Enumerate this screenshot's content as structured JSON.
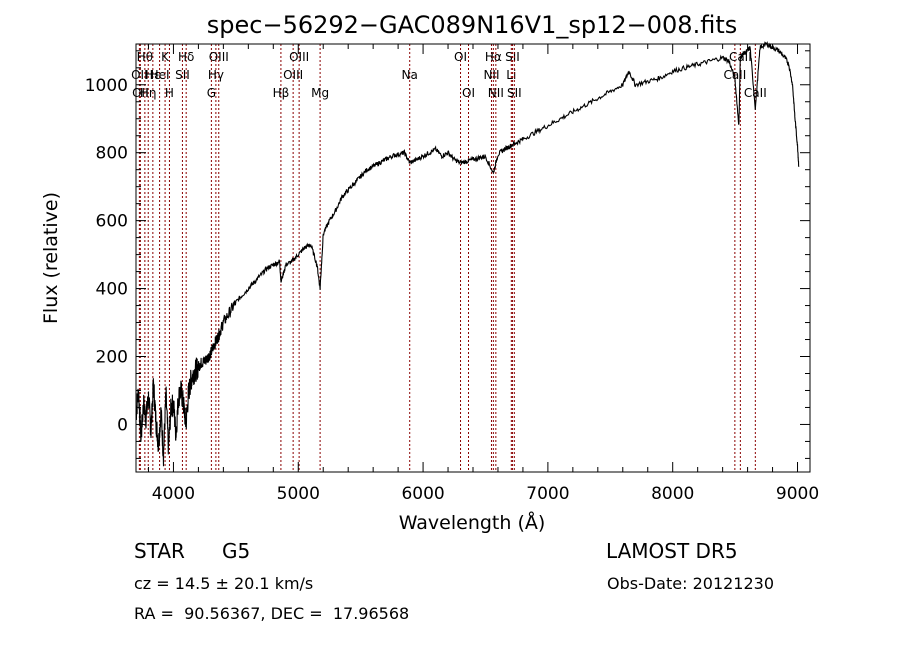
{
  "chart_data": {
    "type": "line",
    "title": "spec−56292−GAC089N16V1_sp12−008.fits",
    "xlabel": "Wavelength (Å)",
    "ylabel": "Flux (relative)",
    "xlim": [
      3700,
      9100
    ],
    "ylim": [
      -140,
      1120
    ],
    "xticks": [
      4000,
      5000,
      6000,
      7000,
      8000,
      9000
    ],
    "yticks": [
      0,
      200,
      400,
      600,
      800,
      1000
    ],
    "grid": false,
    "legend": "none",
    "line_color": "#000000",
    "marker_color": "#8b0000",
    "series": [
      {
        "x": [
          3700,
          3720,
          3740,
          3760,
          3780,
          3800,
          3820,
          3840,
          3860,
          3880,
          3900,
          3920,
          3940,
          3960,
          3980,
          4000,
          4020,
          4040,
          4060,
          4080,
          4100,
          4120,
          4140,
          4160,
          4180,
          4200,
          4220,
          4240,
          4260,
          4280,
          4300,
          4320,
          4340,
          4360,
          4380,
          4400,
          4450,
          4500,
          4550,
          4600,
          4650,
          4700,
          4750,
          4800,
          4850,
          4862,
          4900,
          4950,
          5000,
          5050,
          5100,
          5150,
          5175,
          5200,
          5250,
          5300,
          5350,
          5400,
          5450,
          5500,
          5550,
          5600,
          5650,
          5700,
          5750,
          5800,
          5850,
          5893,
          5950,
          6000,
          6050,
          6100,
          6150,
          6200,
          6250,
          6300,
          6350,
          6400,
          6450,
          6500,
          6563,
          6600,
          6650,
          6700,
          6750,
          6800,
          6900,
          7000,
          7100,
          7200,
          7300,
          7400,
          7500,
          7600,
          7650,
          7700,
          7800,
          7900,
          8000,
          8100,
          8200,
          8300,
          8400,
          8450,
          8498,
          8530,
          8542,
          8560,
          8600,
          8620,
          8662,
          8700,
          8750,
          8800,
          8850,
          8900,
          8930,
          8960,
          8980,
          9000,
          9010
        ],
        "y": [
          30,
          100,
          -40,
          60,
          20,
          80,
          -20,
          120,
          10,
          -60,
          40,
          -90,
          90,
          -70,
          50,
          60,
          -30,
          80,
          100,
          60,
          0,
          90,
          130,
          150,
          160,
          170,
          180,
          185,
          190,
          200,
          210,
          230,
          245,
          260,
          280,
          300,
          330,
          360,
          380,
          400,
          420,
          440,
          460,
          470,
          480,
          420,
          470,
          480,
          500,
          520,
          530,
          470,
          400,
          560,
          600,
          630,
          670,
          690,
          710,
          730,
          750,
          760,
          770,
          780,
          790,
          795,
          800,
          770,
          780,
          790,
          800,
          810,
          790,
          800,
          780,
          770,
          775,
          780,
          785,
          790,
          740,
          795,
          810,
          820,
          830,
          840,
          860,
          880,
          900,
          920,
          940,
          960,
          980,
          1000,
          1040,
          1000,
          1010,
          1020,
          1040,
          1050,
          1060,
          1070,
          1080,
          1070,
          1020,
          880,
          1080,
          1090,
          1100,
          1110,
          930,
          1110,
          1120,
          1110,
          1100,
          1080,
          1060,
          1000,
          900,
          820,
          760
        ]
      }
    ],
    "line_markers": [
      {
        "x": 3727,
        "label": "OII",
        "row": 1
      },
      {
        "x": 3735,
        "label": "OII",
        "row": 2
      },
      {
        "x": 3771,
        "label": "Hθ",
        "row": 0
      },
      {
        "x": 3798,
        "label": "Hη",
        "row": 2
      },
      {
        "x": 3835,
        "label": "Hε",
        "row": 1
      },
      {
        "x": 3889,
        "label": "HeI",
        "row": 1
      },
      {
        "x": 3933,
        "label": "K",
        "row": 0
      },
      {
        "x": 3968,
        "label": "H",
        "row": 2
      },
      {
        "x": 4072,
        "label": "SII",
        "row": 1
      },
      {
        "x": 4102,
        "label": "Hδ",
        "row": 0
      },
      {
        "x": 4304,
        "label": "G",
        "row": 2
      },
      {
        "x": 4340,
        "label": "Hγ",
        "row": 1
      },
      {
        "x": 4363,
        "label": "OIII",
        "row": 0
      },
      {
        "x": 4861,
        "label": "Hβ",
        "row": 2
      },
      {
        "x": 4959,
        "label": "OIII",
        "row": 1
      },
      {
        "x": 5007,
        "label": "OIII",
        "row": 0
      },
      {
        "x": 5175,
        "label": "Mg",
        "row": 2
      },
      {
        "x": 5893,
        "label": "Na",
        "row": 1
      },
      {
        "x": 6300,
        "label": "OI",
        "row": 0
      },
      {
        "x": 6364,
        "label": "OI",
        "row": 2
      },
      {
        "x": 6548,
        "label": "NII",
        "row": 1
      },
      {
        "x": 6563,
        "label": "Hα",
        "row": 0
      },
      {
        "x": 6583,
        "label": "NII",
        "row": 2
      },
      {
        "x": 6707,
        "label": "Li",
        "row": 1
      },
      {
        "x": 6716,
        "label": "SII",
        "row": 0
      },
      {
        "x": 6731,
        "label": "SII",
        "row": 2
      },
      {
        "x": 8498,
        "label": "CaII",
        "row": 1
      },
      {
        "x": 8542,
        "label": "CaII",
        "row": 0
      },
      {
        "x": 8662,
        "label": "CaII",
        "row": 2
      }
    ]
  },
  "info": {
    "object_class": "STAR",
    "subclass": "G5",
    "survey": "LAMOST DR5",
    "redshift": "cz = 14.5 ± 20.1 km/s",
    "obs_date": "Obs-Date: 20121230",
    "coords": "RA =  90.56367, DEC =  17.96568"
  }
}
